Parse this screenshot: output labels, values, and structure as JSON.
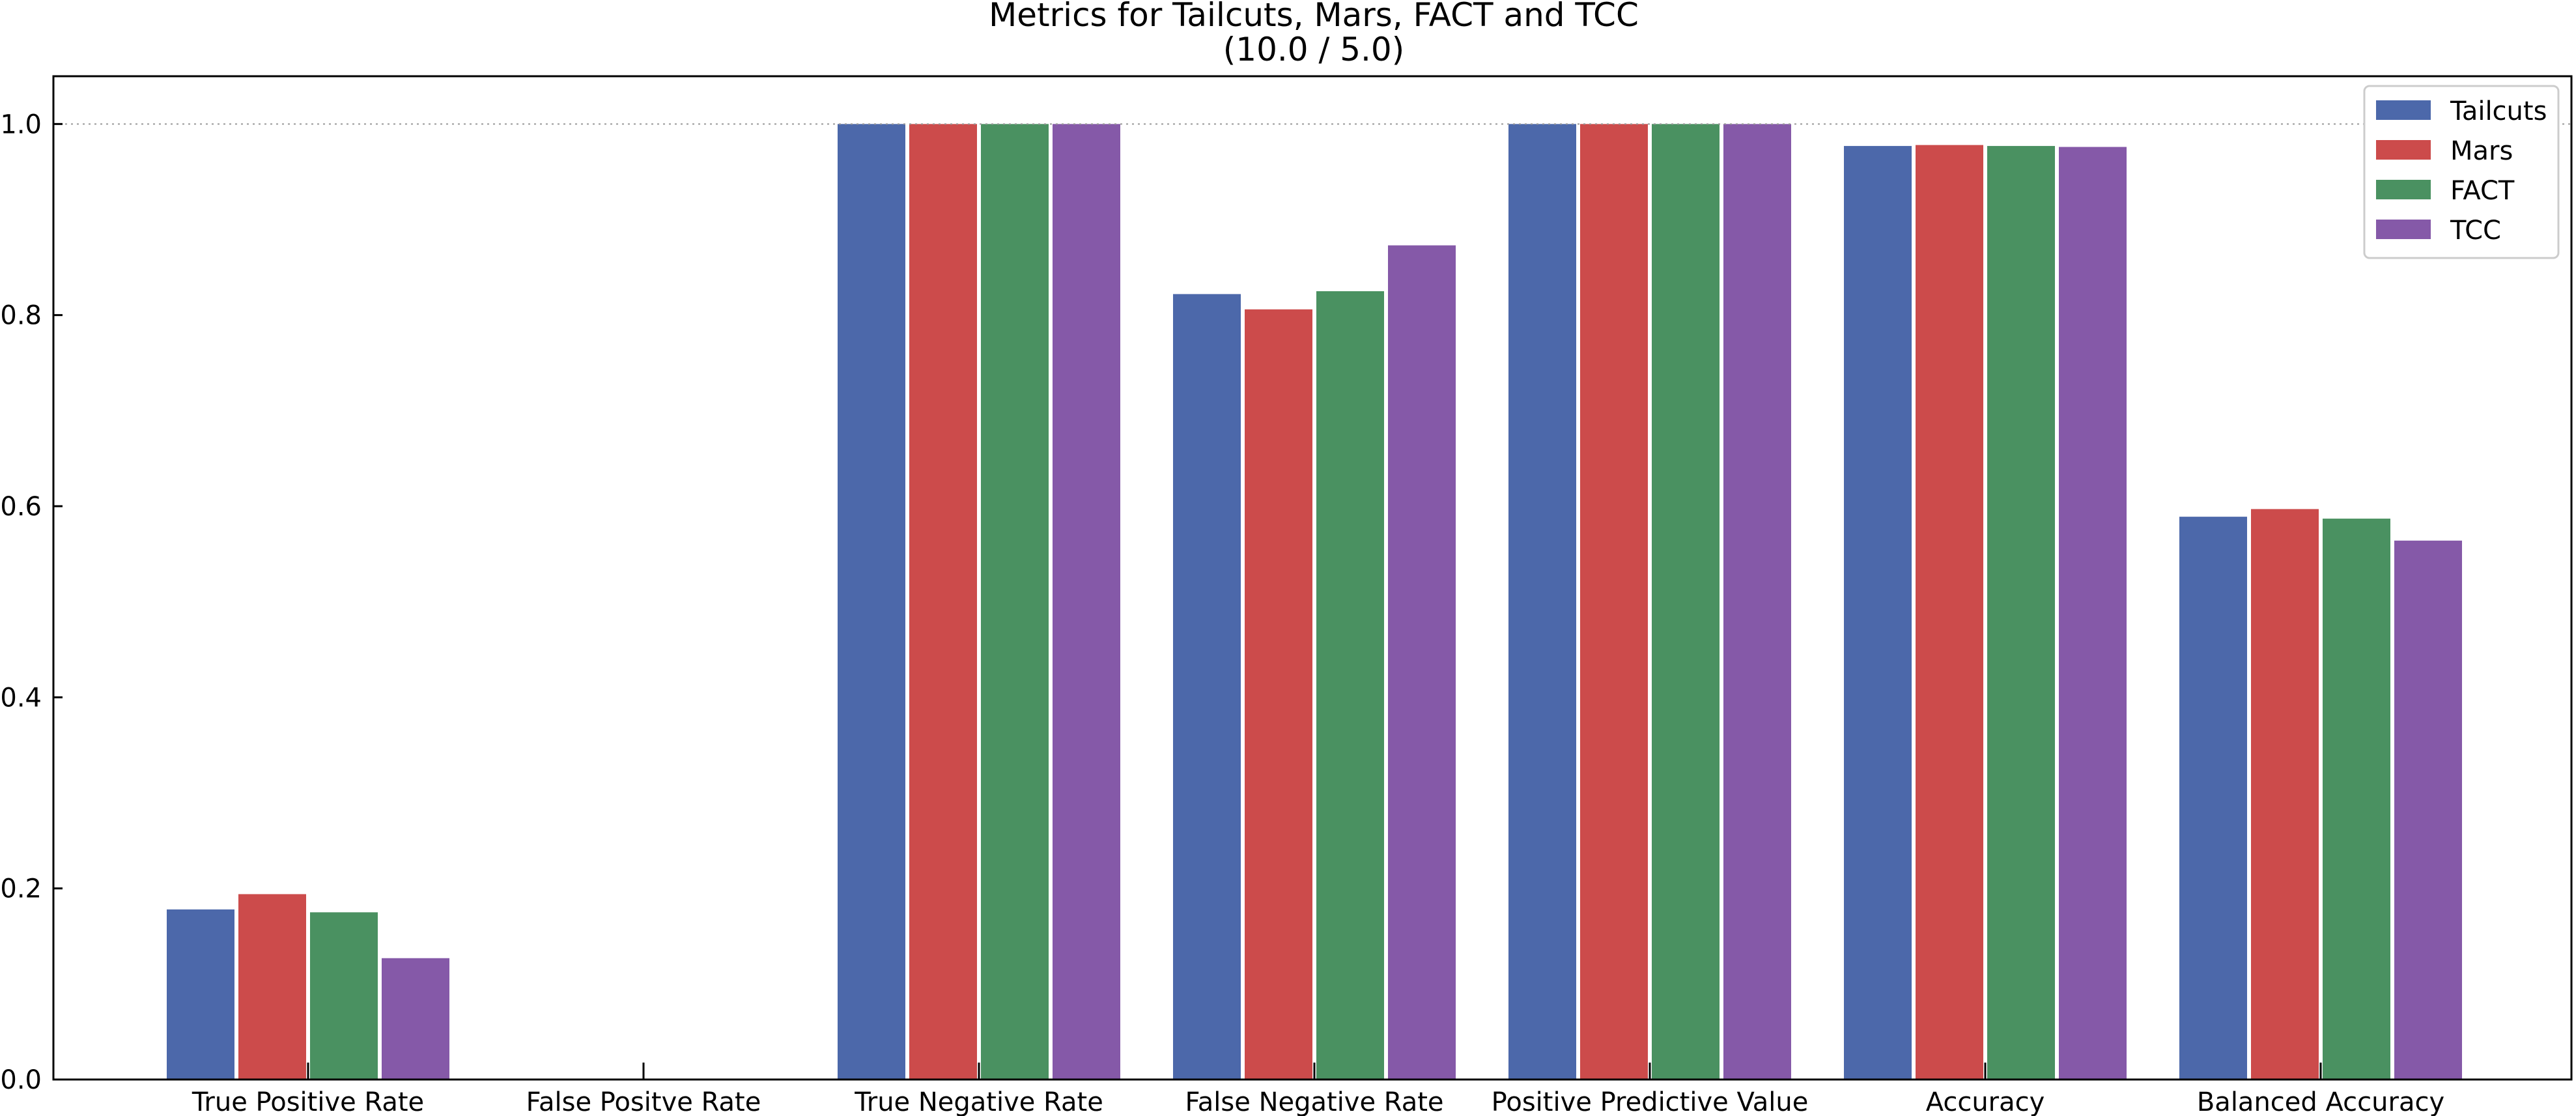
{
  "chart_data": {
    "type": "bar",
    "title": "Metrics for Tailcuts, Mars, FACT and TCC",
    "subtitle": "(10.0 / 5.0)",
    "xlabel": "",
    "ylabel": "",
    "ylim": [
      0,
      1.05
    ],
    "yticks": [
      "0.0",
      "0.2",
      "0.4",
      "0.6",
      "0.8",
      "1.0"
    ],
    "reference_line": 1.0,
    "grid": false,
    "legend_position": "top-right",
    "categories": [
      "True Positive Rate",
      "False Positve Rate",
      "True Negative Rate",
      "False Negative Rate",
      "Positive Predictive Value",
      "Accuracy",
      "Balanced Accuracy"
    ],
    "series": [
      {
        "name": "Tailcuts",
        "color": "#4c68aa",
        "values": [
          0.178,
          0.0,
          1.0,
          0.822,
          1.0,
          0.977,
          0.589
        ]
      },
      {
        "name": "Mars",
        "color": "#cc4b4b",
        "values": [
          0.194,
          0.0,
          1.0,
          0.806,
          1.0,
          0.978,
          0.597
        ]
      },
      {
        "name": "FACT",
        "color": "#4a9161",
        "values": [
          0.175,
          0.0,
          1.0,
          0.825,
          1.0,
          0.977,
          0.587
        ]
      },
      {
        "name": "TCC",
        "color": "#8559a8",
        "values": [
          0.127,
          0.0,
          1.0,
          0.873,
          1.0,
          0.976,
          0.564
        ]
      }
    ]
  }
}
